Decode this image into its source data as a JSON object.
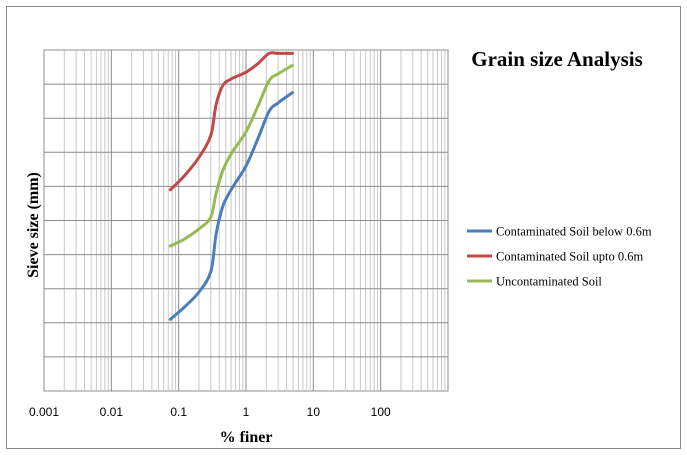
{
  "chart_data": {
    "type": "line",
    "title": "Grain size Analysis",
    "xlabel": "% finer",
    "ylabel": "Sieve size (mm)",
    "x_scale": "log",
    "xlim": [
      0.001,
      1000
    ],
    "x_ticks": [
      "0.001",
      "0.01",
      "0.1",
      "1",
      "10",
      "100"
    ],
    "x_tick_values": [
      0.001,
      0.01,
      0.1,
      1,
      10,
      100
    ],
    "ylim": [
      0,
      10
    ],
    "y_ticks_labeled": false,
    "grid": true,
    "legend": "right",
    "series": [
      {
        "name": "Contaminated Soil below 0.6m",
        "color": "#4a7ebb",
        "points": [
          [
            0.075,
            2.1
          ],
          [
            0.12,
            2.45
          ],
          [
            0.2,
            2.9
          ],
          [
            0.3,
            3.5
          ],
          [
            0.36,
            4.6
          ],
          [
            0.45,
            5.4
          ],
          [
            0.6,
            5.9
          ],
          [
            1.0,
            6.6
          ],
          [
            1.5,
            7.4
          ],
          [
            2.2,
            8.2
          ],
          [
            3.0,
            8.45
          ],
          [
            4.9,
            8.75
          ]
        ]
      },
      {
        "name": "Contaminated Soil upto 0.6m",
        "color": "#be4b48",
        "points": [
          [
            0.075,
            5.9
          ],
          [
            0.12,
            6.3
          ],
          [
            0.2,
            6.85
          ],
          [
            0.3,
            7.5
          ],
          [
            0.36,
            8.4
          ],
          [
            0.45,
            8.95
          ],
          [
            0.6,
            9.15
          ],
          [
            1.0,
            9.35
          ],
          [
            1.5,
            9.6
          ],
          [
            2.2,
            9.9
          ],
          [
            3.0,
            9.9
          ],
          [
            4.9,
            9.9
          ]
        ]
      },
      {
        "name": "Uncontaminated Soil",
        "color": "#98b954",
        "points": [
          [
            0.075,
            4.25
          ],
          [
            0.12,
            4.45
          ],
          [
            0.2,
            4.75
          ],
          [
            0.3,
            5.1
          ],
          [
            0.36,
            5.8
          ],
          [
            0.45,
            6.45
          ],
          [
            0.6,
            6.95
          ],
          [
            1.0,
            7.6
          ],
          [
            1.5,
            8.35
          ],
          [
            2.2,
            9.1
          ],
          [
            3.0,
            9.3
          ],
          [
            4.9,
            9.55
          ]
        ]
      }
    ]
  }
}
